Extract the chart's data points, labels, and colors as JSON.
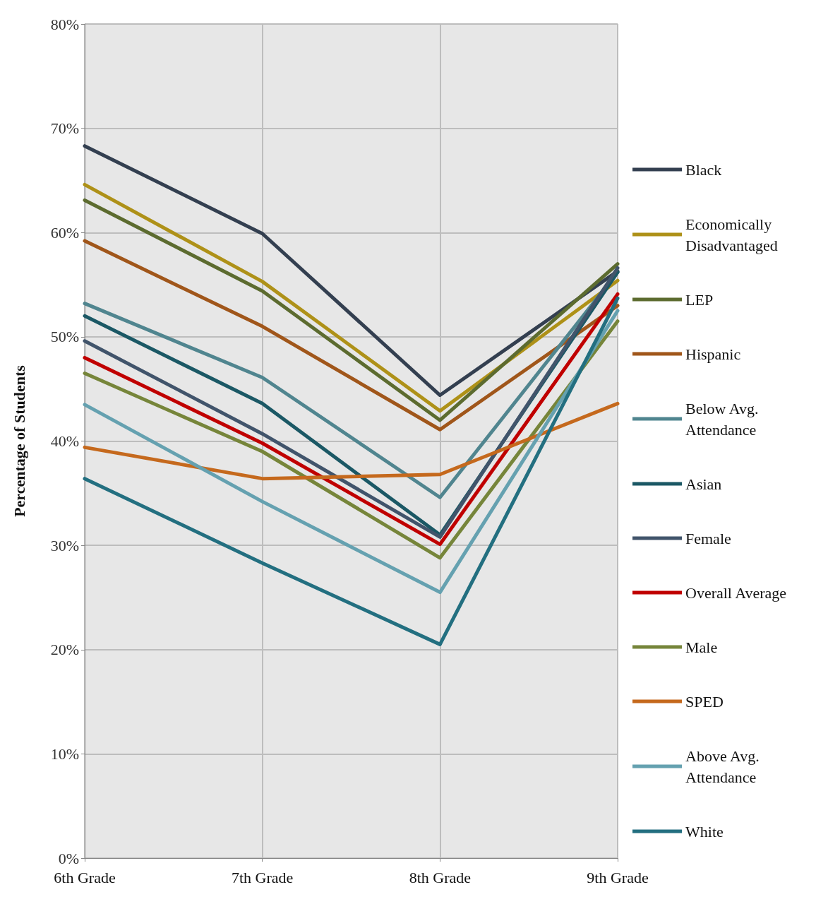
{
  "chart_data": {
    "type": "line",
    "ylabel": "Percentage of Students",
    "categories": [
      "6th Grade",
      "7th Grade",
      "8th Grade",
      "9th Grade"
    ],
    "ylim": [
      0,
      80
    ],
    "yticks": [
      {
        "value": 0,
        "label": "0%"
      },
      {
        "value": 10,
        "label": "10%"
      },
      {
        "value": 20,
        "label": "20%"
      },
      {
        "value": 30,
        "label": "30%"
      },
      {
        "value": 40,
        "label": "40%"
      },
      {
        "value": 50,
        "label": "50%"
      },
      {
        "value": 60,
        "label": "60%"
      },
      {
        "value": 70,
        "label": "70%"
      },
      {
        "value": 80,
        "label": "80%"
      }
    ],
    "grid": true,
    "legend": "right",
    "marker": "none",
    "line_style": "solid",
    "series": [
      {
        "name": "Black",
        "color": "#333f50",
        "values": [
          68.3,
          59.9,
          44.4,
          56.3
        ]
      },
      {
        "name": "Economically Disadvantaged",
        "color": "#ae9118",
        "values": [
          64.6,
          55.3,
          42.9,
          55.4
        ]
      },
      {
        "name": "LEP",
        "color": "#5c6b2f",
        "values": [
          63.1,
          54.4,
          42.0,
          57.0
        ]
      },
      {
        "name": "Hispanic",
        "color": "#a0561a",
        "values": [
          59.2,
          51.0,
          41.1,
          53.0
        ]
      },
      {
        "name": "Below Avg. Attendance",
        "color": "#50858f",
        "values": [
          53.2,
          46.1,
          34.6,
          56.2
        ]
      },
      {
        "name": "Asian",
        "color": "#1b5865",
        "values": [
          52.0,
          43.6,
          31.0,
          56.2
        ]
      },
      {
        "name": "Female",
        "color": "#41546b",
        "values": [
          49.6,
          40.7,
          30.8,
          56.6
        ]
      },
      {
        "name": "Overall Average",
        "color": "#c00000",
        "values": [
          48.0,
          39.8,
          30.1,
          54.1
        ]
      },
      {
        "name": "Male",
        "color": "#76853a",
        "values": [
          46.5,
          39.0,
          28.8,
          51.5
        ]
      },
      {
        "name": "SPED",
        "color": "#c5691d",
        "values": [
          39.4,
          36.4,
          36.8,
          43.6
        ]
      },
      {
        "name": "Above Avg. Attendance",
        "color": "#65a1b0",
        "values": [
          43.5,
          34.2,
          25.5,
          52.5
        ]
      },
      {
        "name": "White",
        "color": "#236f80",
        "values": [
          36.4,
          28.3,
          20.5,
          53.7
        ]
      }
    ]
  }
}
